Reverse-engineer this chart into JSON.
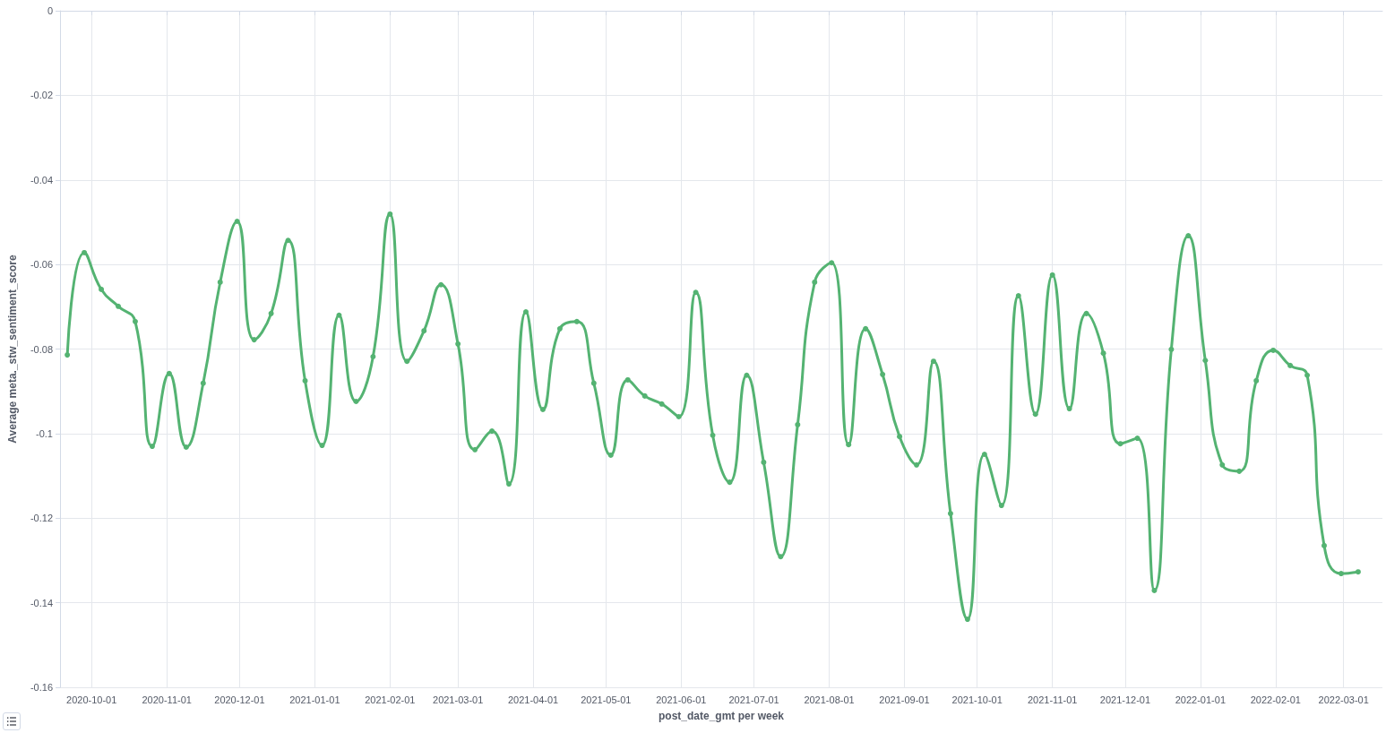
{
  "chart_data": {
    "type": "line",
    "xlabel": "post_date_gmt per week",
    "ylabel": "Average meta._stw_sentiment_score",
    "x": [
      "2020-09-21",
      "2020-09-28",
      "2020-10-05",
      "2020-10-12",
      "2020-10-19",
      "2020-10-26",
      "2020-11-02",
      "2020-11-09",
      "2020-11-16",
      "2020-11-23",
      "2020-11-30",
      "2020-12-07",
      "2020-12-14",
      "2020-12-21",
      "2020-12-28",
      "2021-01-04",
      "2021-01-11",
      "2021-01-18",
      "2021-01-25",
      "2021-02-01",
      "2021-02-08",
      "2021-02-15",
      "2021-02-22",
      "2021-03-01",
      "2021-03-08",
      "2021-03-15",
      "2021-03-22",
      "2021-03-29",
      "2021-04-05",
      "2021-04-12",
      "2021-04-19",
      "2021-04-26",
      "2021-05-03",
      "2021-05-10",
      "2021-05-17",
      "2021-05-24",
      "2021-05-31",
      "2021-06-07",
      "2021-06-14",
      "2021-06-21",
      "2021-06-28",
      "2021-07-05",
      "2021-07-12",
      "2021-07-19",
      "2021-07-26",
      "2021-08-02",
      "2021-08-09",
      "2021-08-16",
      "2021-08-23",
      "2021-08-30",
      "2021-09-06",
      "2021-09-13",
      "2021-09-20",
      "2021-09-27",
      "2021-10-04",
      "2021-10-11",
      "2021-10-18",
      "2021-10-25",
      "2021-11-01",
      "2021-11-08",
      "2021-11-15",
      "2021-11-22",
      "2021-11-29",
      "2021-12-06",
      "2021-12-13",
      "2021-12-20",
      "2021-12-27",
      "2022-01-03",
      "2022-01-10",
      "2022-01-17",
      "2022-01-24",
      "2022-01-31",
      "2022-02-07",
      "2022-02-14",
      "2022-02-21",
      "2022-02-28",
      "2022-03-07"
    ],
    "series": [
      {
        "color": "#54b372",
        "values": [
          -0.0814,
          -0.0572,
          -0.0659,
          -0.0699,
          -0.0735,
          -0.103,
          -0.0858,
          -0.1032,
          -0.0881,
          -0.0642,
          -0.0498,
          -0.0778,
          -0.0716,
          -0.0543,
          -0.0875,
          -0.1028,
          -0.072,
          -0.0924,
          -0.0818,
          -0.0481,
          -0.0829,
          -0.0757,
          -0.0648,
          -0.0788,
          -0.1038,
          -0.0994,
          -0.1119,
          -0.0712,
          -0.0943,
          -0.0752,
          -0.0735,
          -0.0881,
          -0.1051,
          -0.0873,
          -0.0911,
          -0.093,
          -0.096,
          -0.0666,
          -0.1004,
          -0.1115,
          -0.0862,
          -0.1068,
          -0.1291,
          -0.0979,
          -0.0642,
          -0.0596,
          -0.1026,
          -0.0752,
          -0.086,
          -0.1007,
          -0.1074,
          -0.0829,
          -0.1189,
          -0.1439,
          -0.1049,
          -0.117,
          -0.0674,
          -0.0954,
          -0.0625,
          -0.0941,
          -0.0716,
          -0.081,
          -0.1024,
          -0.1011,
          -0.1371,
          -0.0801,
          -0.0532,
          -0.0827,
          -0.1074,
          -0.1089,
          -0.0875,
          -0.0803,
          -0.0839,
          -0.0862,
          -0.1265,
          -0.1331,
          -0.1327
        ]
      }
    ],
    "xlim": [
      "2020-09-18",
      "2022-03-17"
    ],
    "xticks": [
      "2020-10-01",
      "2020-11-01",
      "2020-12-01",
      "2021-01-01",
      "2021-02-01",
      "2021-03-01",
      "2021-04-01",
      "2021-05-01",
      "2021-06-01",
      "2021-07-01",
      "2021-08-01",
      "2021-09-01",
      "2021-10-01",
      "2021-11-01",
      "2021-12-01",
      "2022-01-01",
      "2022-02-01",
      "2022-03-01"
    ],
    "ylim": [
      -0.16,
      0
    ],
    "yticks": [
      -0.16,
      -0.14,
      -0.12,
      -0.1,
      -0.08,
      -0.06,
      -0.04,
      -0.02,
      0
    ],
    "grid": true,
    "marker": "circle",
    "line_style": "solid"
  }
}
